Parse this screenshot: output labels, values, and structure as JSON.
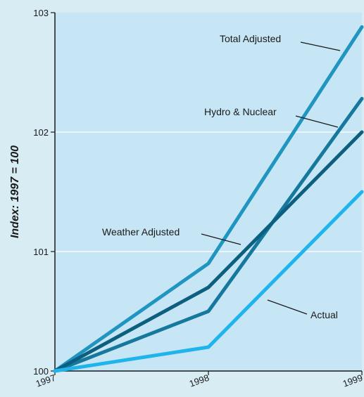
{
  "chart_data": {
    "type": "line",
    "ylabel": "Index: 1997 = 100",
    "xlabel": "",
    "x": [
      "1997",
      "1998",
      "1999"
    ],
    "ylim": [
      100,
      103
    ],
    "yticks": [
      "100",
      "101",
      "102",
      "103"
    ],
    "grid": "horizontal",
    "series": [
      {
        "name": "Total Adjusted",
        "values": [
          100,
          100.9,
          102.88
        ],
        "color": "#1f95c0"
      },
      {
        "name": "Hydro & Nuclear",
        "values": [
          100,
          100.5,
          102.28
        ],
        "color": "#17789e"
      },
      {
        "name": "Weather Adjusted",
        "values": [
          100,
          100.7,
          102.0
        ],
        "color": "#0d5f80"
      },
      {
        "name": "Actual",
        "values": [
          100,
          100.2,
          101.5
        ],
        "color": "#1fb4ec"
      }
    ],
    "plot_background": "#c6e6f6",
    "page_background": "#d8ecf4"
  }
}
